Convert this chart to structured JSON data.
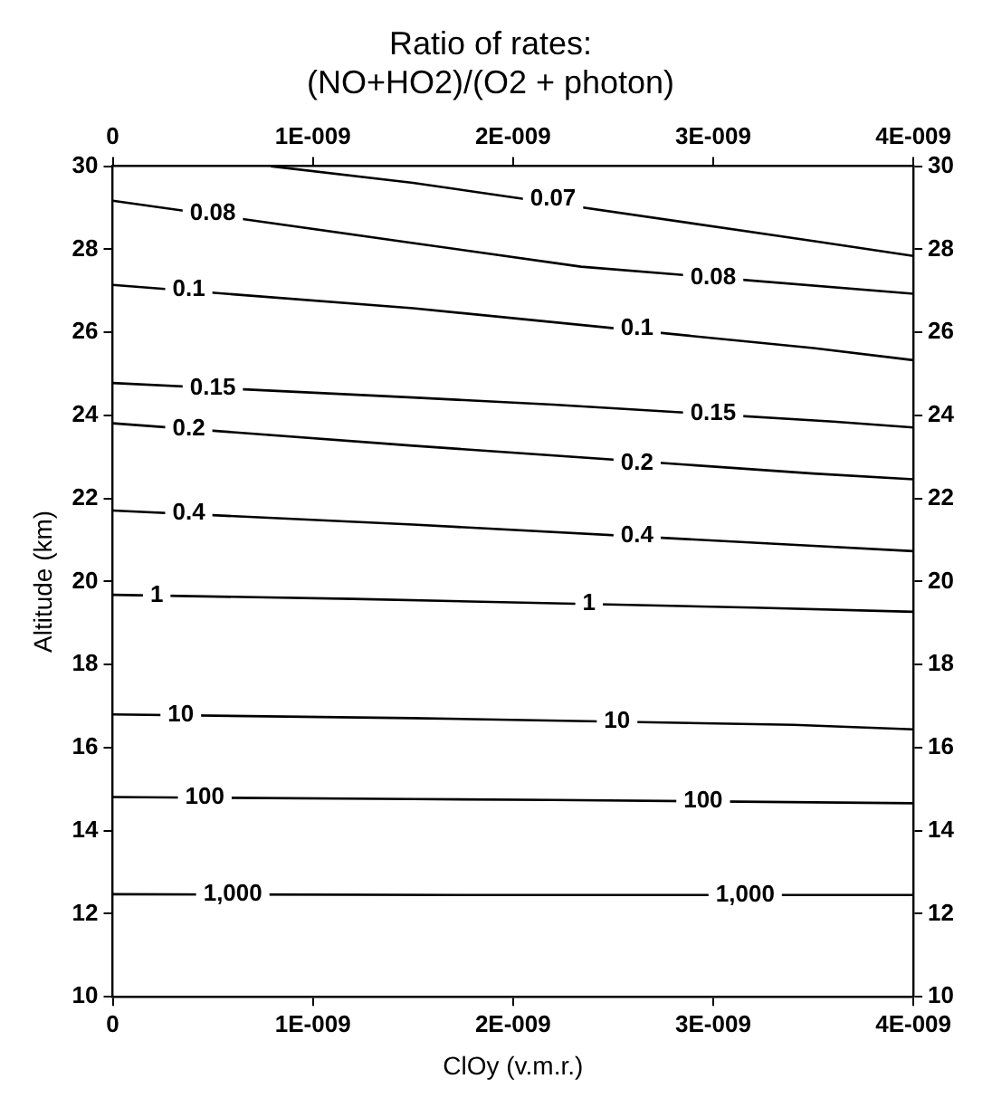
{
  "chart_data": {
    "type": "line",
    "title": "Ratio of rates:\n(NO+HO2)/(O2 + photon)",
    "xlabel": "ClOy (v.m.r.)",
    "ylabel": "Altitude (km)",
    "xlim": [
      0,
      4e-09
    ],
    "xticks": [
      0,
      {
        "value": 1e-09,
        "label": "1E-009"
      },
      {
        "value": 2e-09,
        "label": "2E-009"
      },
      {
        "value": 3e-09,
        "label": "3E-009"
      },
      {
        "value": 4e-09,
        "label": "4E-009"
      }
    ],
    "x2lim": [
      0,
      4e-09
    ],
    "x2ticks": [
      0,
      {
        "value": 1e-09,
        "label": "1E-009"
      },
      {
        "value": 2e-09,
        "label": "2E-009"
      },
      {
        "value": 3e-09,
        "label": "3E-009"
      },
      {
        "value": 4e-09,
        "label": "4E-009"
      }
    ],
    "ylim": [
      10,
      30
    ],
    "yticks": [
      10,
      12,
      14,
      16,
      18,
      20,
      22,
      24,
      26,
      28,
      30
    ],
    "y2lim": [
      10,
      30
    ],
    "y2ticks": [
      10,
      12,
      14,
      16,
      18,
      20,
      22,
      24,
      26,
      28,
      30
    ],
    "grid": false,
    "legend": false,
    "marker": "none",
    "line_style": "solid",
    "series": [
      {
        "color": "#000000",
        "x": [
          7.9e-10,
          1.5e-09,
          3.5e-09,
          4e-09
        ],
        "values": [
          30,
          29.6,
          28.2,
          27.84
        ]
      },
      {
        "color": "#000000",
        "x": [
          0,
          1.5e-09,
          2.34e-09,
          4e-09
        ],
        "values": [
          29.17,
          28.15,
          27.58,
          26.93
        ]
      },
      {
        "color": "#000000",
        "x": [
          0,
          1.5e-09,
          3.5e-09,
          4e-09
        ],
        "values": [
          27.14,
          26.58,
          25.62,
          25.33
        ]
      },
      {
        "color": "#000000",
        "x": [
          0,
          1.5e-09,
          2.2e-09,
          3.6e-09,
          4e-09
        ],
        "values": [
          24.78,
          24.43,
          24.26,
          23.85,
          23.71
        ]
      },
      {
        "color": "#000000",
        "x": [
          0,
          1.5e-09,
          3.5e-09,
          4e-09
        ],
        "values": [
          23.81,
          23.27,
          22.6,
          22.46
        ]
      },
      {
        "color": "#000000",
        "x": [
          0,
          1.5e-09,
          3.5e-09,
          4e-09
        ],
        "values": [
          21.71,
          21.37,
          20.86,
          20.73
        ]
      },
      {
        "color": "#000000",
        "x": [
          0,
          1.2e-09,
          3.2e-09,
          4e-09
        ],
        "values": [
          19.68,
          19.58,
          19.37,
          19.27
        ]
      },
      {
        "color": "#000000",
        "x": [
          0,
          1.5e-09,
          3.4e-09,
          4e-09
        ],
        "values": [
          16.8,
          16.71,
          16.55,
          16.44
        ]
      },
      {
        "color": "#000000",
        "x": [
          0,
          1.5e-09,
          2.2e-09,
          4e-09
        ],
        "values": [
          14.81,
          14.76,
          14.74,
          14.66
        ]
      },
      {
        "color": "#000000",
        "x": [
          0,
          1.8e-09,
          2.4e-09,
          4e-09
        ],
        "values": [
          12.47,
          12.45,
          12.45,
          12.45
        ]
      }
    ],
    "annotations": [
      {
        "text": "0.07",
        "x": 2.2e-09,
        "y": 29.2
      },
      {
        "text": "0.08",
        "x": 5e-10,
        "y": 28.87
      },
      {
        "text": "0.08",
        "x": 3e-09,
        "y": 27.32
      },
      {
        "text": "0.1",
        "x": 3.8e-10,
        "y": 27.04
      },
      {
        "text": "0.1",
        "x": 2.62e-09,
        "y": 26.1
      },
      {
        "text": "0.15",
        "x": 5e-10,
        "y": 24.66
      },
      {
        "text": "0.15",
        "x": 3e-09,
        "y": 24.05
      },
      {
        "text": "0.2",
        "x": 3.8e-10,
        "y": 23.67
      },
      {
        "text": "0.2",
        "x": 2.62e-09,
        "y": 22.84
      },
      {
        "text": "0.4",
        "x": 3.8e-10,
        "y": 21.64
      },
      {
        "text": "0.4",
        "x": 2.62e-09,
        "y": 21.1
      },
      {
        "text": "1",
        "x": 2.2e-10,
        "y": 19.66
      },
      {
        "text": "1",
        "x": 2.38e-09,
        "y": 19.47
      },
      {
        "text": "10",
        "x": 3.4e-10,
        "y": 16.78
      },
      {
        "text": "10",
        "x": 2.52e-09,
        "y": 16.64
      },
      {
        "text": "100",
        "x": 4.6e-10,
        "y": 14.8
      },
      {
        "text": "100",
        "x": 2.95e-09,
        "y": 14.71
      },
      {
        "text": "1,000",
        "x": 6e-10,
        "y": 12.46
      },
      {
        "text": "1,000",
        "x": 3.16e-09,
        "y": 12.45
      }
    ]
  }
}
